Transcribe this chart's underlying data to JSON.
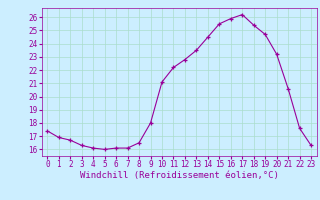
{
  "x": [
    0,
    1,
    2,
    3,
    4,
    5,
    6,
    7,
    8,
    9,
    10,
    11,
    12,
    13,
    14,
    15,
    16,
    17,
    18,
    19,
    20,
    21,
    22,
    23
  ],
  "y": [
    17.4,
    16.9,
    16.7,
    16.3,
    16.1,
    16.0,
    16.1,
    16.1,
    16.5,
    18.0,
    21.1,
    22.2,
    22.8,
    23.5,
    24.5,
    25.5,
    25.9,
    26.2,
    25.4,
    24.7,
    23.2,
    20.6,
    17.6,
    16.3
  ],
  "line_color": "#990099",
  "marker": "+",
  "bg_color": "#cceeff",
  "grid_color": "#aaddcc",
  "xlabel": "Windchill (Refroidissement éolien,°C)",
  "xlim": [
    -0.5,
    23.5
  ],
  "ylim": [
    15.5,
    26.7
  ],
  "yticks": [
    16,
    17,
    18,
    19,
    20,
    21,
    22,
    23,
    24,
    25,
    26
  ],
  "xticks": [
    0,
    1,
    2,
    3,
    4,
    5,
    6,
    7,
    8,
    9,
    10,
    11,
    12,
    13,
    14,
    15,
    16,
    17,
    18,
    19,
    20,
    21,
    22,
    23
  ],
  "tick_color": "#990099",
  "label_color": "#990099",
  "tick_fontsize": 5.5,
  "xlabel_fontsize": 6.5
}
